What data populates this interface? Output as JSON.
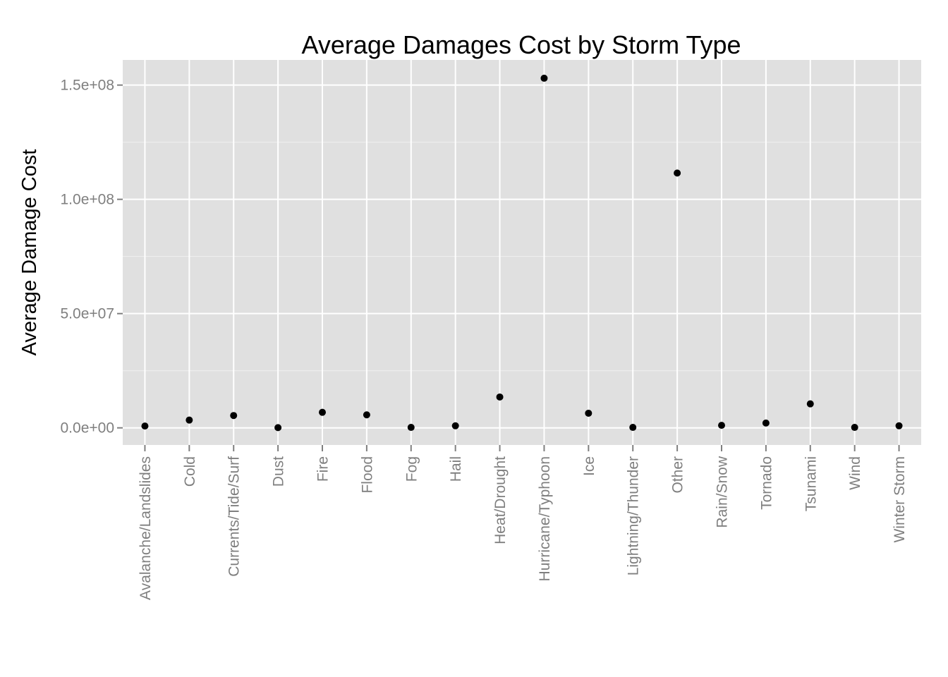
{
  "chart_data": {
    "type": "scatter",
    "title": "Average Damages Cost by Storm Type",
    "xlabel": "",
    "ylabel": "Average Damage Cost",
    "categories": [
      "Avalanche/Landslides",
      "Cold",
      "Currents/Tide/Surf",
      "Dust",
      "Fire",
      "Flood",
      "Fog",
      "Hail",
      "Heat/Drought",
      "Hurricane/Typhoon",
      "Ice",
      "Lightning/Thunder",
      "Other",
      "Rain/Snow",
      "Tornado",
      "Tsunami",
      "Wind",
      "Winter Storm"
    ],
    "values": [
      800000,
      3400000,
      5400000,
      100000,
      6800000,
      5700000,
      200000,
      900000,
      13500000,
      153000000,
      6400000,
      200000,
      111500000,
      1100000,
      2100000,
      10500000,
      200000,
      900000
    ],
    "ylim": [
      -7500000,
      161000000
    ],
    "yticks": [
      0,
      50000000,
      100000000,
      150000000
    ],
    "ytick_labels": [
      "0.0e+00",
      "5.0e+07",
      "1.0e+08",
      "1.5e+08"
    ],
    "grid": true,
    "colors": {
      "panel": "#e0e0e0",
      "grid_major": "#ffffff",
      "grid_minor": "#f0f0f0",
      "point": "#000000",
      "tick_text": "#7f7f7f",
      "tick_mark": "#7f7f7f"
    }
  }
}
